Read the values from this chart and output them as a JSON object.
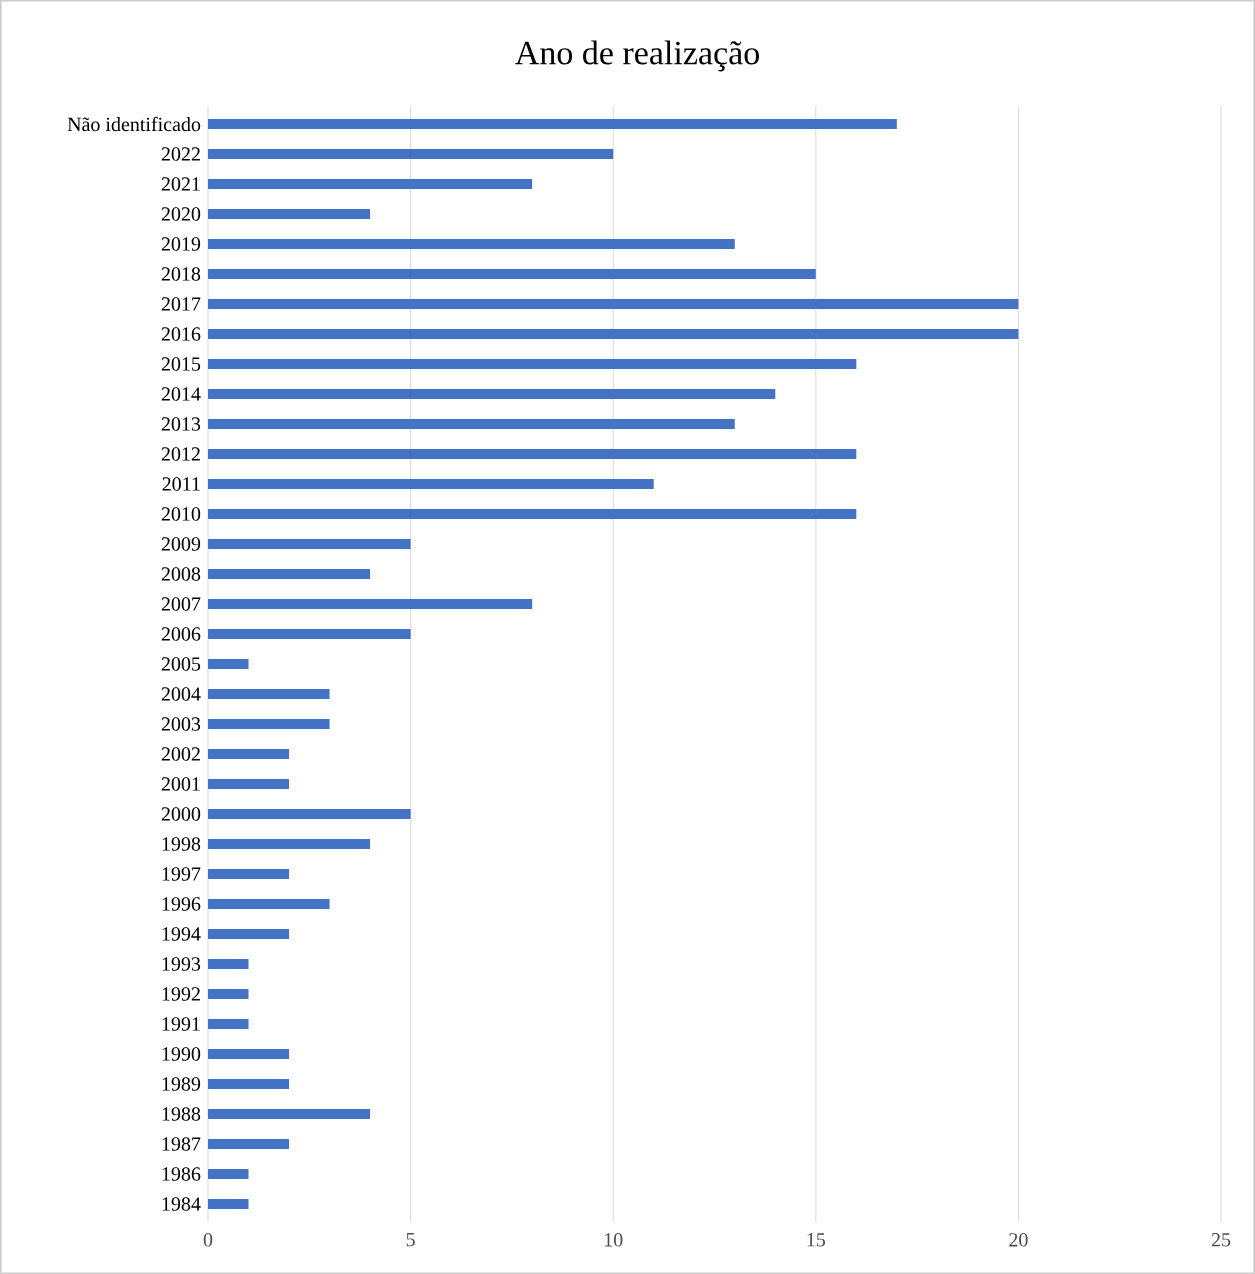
{
  "chart_data": {
    "type": "bar",
    "orientation": "horizontal",
    "title": "Ano de realização",
    "categories": [
      "Não identificado",
      "2022",
      "2021",
      "2020",
      "2019",
      "2018",
      "2017",
      "2016",
      "2015",
      "2014",
      "2013",
      "2012",
      "2011",
      "2010",
      "2009",
      "2008",
      "2007",
      "2006",
      "2005",
      "2004",
      "2003",
      "2002",
      "2001",
      "2000",
      "1998",
      "1997",
      "1996",
      "1994",
      "1993",
      "1992",
      "1991",
      "1990",
      "1989",
      "1988",
      "1987",
      "1986",
      "1984"
    ],
    "values": [
      17,
      10,
      8,
      4,
      13,
      15,
      20,
      20,
      16,
      14,
      13,
      16,
      11,
      16,
      5,
      4,
      8,
      5,
      1,
      3,
      3,
      2,
      2,
      5,
      4,
      2,
      3,
      2,
      1,
      1,
      1,
      2,
      2,
      4,
      2,
      1,
      1
    ],
    "color": "#4472c4",
    "xlim": [
      0,
      25
    ],
    "xticks": [
      0,
      5,
      10,
      15,
      20,
      25
    ],
    "grid": "x"
  }
}
